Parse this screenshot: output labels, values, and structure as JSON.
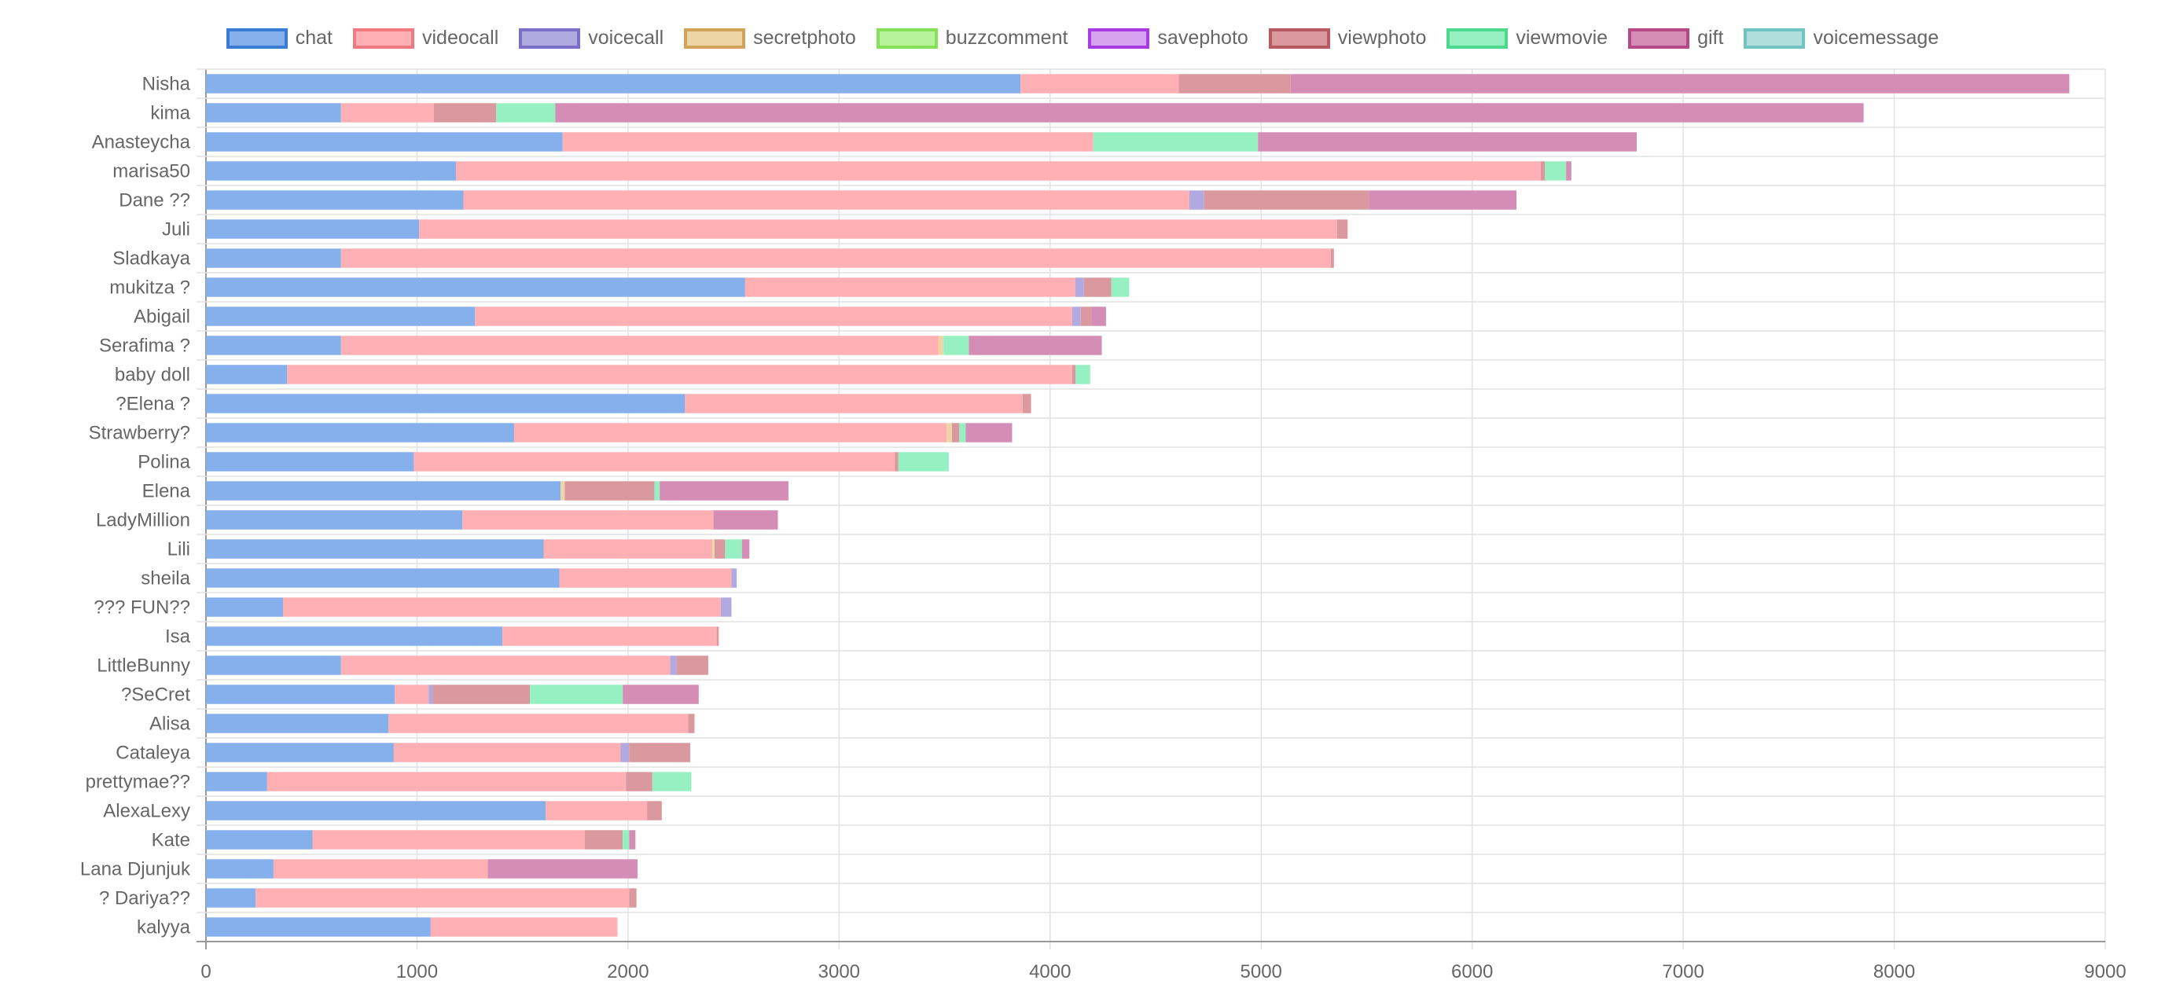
{
  "chart_data": {
    "type": "bar",
    "orientation": "horizontal",
    "stacked": true,
    "legend_position": "top",
    "grid": true,
    "xlim": [
      0,
      9000
    ],
    "x_ticks": [
      "0",
      "1000",
      "2000",
      "3000",
      "4000",
      "5000",
      "6000",
      "7000",
      "8000",
      "9000"
    ],
    "categories": [
      "Nisha",
      "kima",
      "Anasteycha",
      "marisa50",
      "Dane ??",
      "Juli",
      "Sladkaya",
      "mukitza ?",
      "Abigail",
      "Serafima ?",
      "baby doll",
      "?Elena ?",
      "Strawberry?",
      "Polina",
      "Elena",
      "LadyMillion",
      "Lili",
      "sheila",
      "??? FUN??",
      "Isa",
      "LittleBunny",
      "?SeCret",
      "Alisa",
      "Cataleya",
      "prettymae??",
      "AlexaLexy",
      "Kate",
      "Lana Djunjuk",
      "? Dariya??",
      "kalyya"
    ],
    "series": [
      {
        "name": "chat",
        "color": "#85b0ec",
        "border": "#3a7bd5",
        "values": [
          3860,
          640,
          1690,
          1185,
          1220,
          1010,
          640,
          2555,
          1275,
          640,
          385,
          2270,
          1460,
          985,
          1680,
          1215,
          1600,
          1675,
          365,
          1405,
          640,
          895,
          865,
          890,
          290,
          1610,
          505,
          320,
          235,
          1065
        ]
      },
      {
        "name": "videocall",
        "color": "#feb0b5",
        "border": "#f17a80",
        "values": [
          750,
          440,
          2515,
          5140,
          3440,
          4350,
          4690,
          1565,
          2830,
          2830,
          3720,
          1600,
          2050,
          2280,
          0,
          1190,
          800,
          815,
          2075,
          1015,
          1560,
          160,
          1420,
          1075,
          1700,
          480,
          1290,
          1015,
          1770,
          885
        ]
      },
      {
        "name": "voicecall",
        "color": "#b0aae0",
        "border": "#7b70c9",
        "values": [
          0,
          0,
          0,
          0,
          70,
          0,
          0,
          40,
          40,
          0,
          0,
          0,
          0,
          0,
          0,
          0,
          0,
          25,
          50,
          0,
          30,
          20,
          0,
          40,
          0,
          0,
          0,
          0,
          0,
          0
        ]
      },
      {
        "name": "secretphoto",
        "color": "#eed5a8",
        "border": "#d1a45a",
        "values": [
          0,
          0,
          0,
          0,
          0,
          0,
          0,
          0,
          0,
          25,
          0,
          0,
          25,
          0,
          20,
          0,
          10,
          0,
          0,
          0,
          0,
          0,
          0,
          0,
          0,
          0,
          0,
          0,
          0,
          0
        ]
      },
      {
        "name": "buzzcomment",
        "color": "#b7f39b",
        "border": "#86e05a",
        "values": [
          0,
          0,
          0,
          0,
          0,
          0,
          0,
          0,
          0,
          0,
          0,
          0,
          0,
          0,
          0,
          0,
          0,
          0,
          0,
          0,
          0,
          0,
          0,
          0,
          0,
          0,
          0,
          0,
          0,
          0
        ]
      },
      {
        "name": "savephoto",
        "color": "#d6a3f0",
        "border": "#a93be3",
        "values": [
          0,
          0,
          0,
          0,
          0,
          0,
          0,
          0,
          0,
          0,
          0,
          0,
          0,
          0,
          0,
          0,
          0,
          0,
          0,
          0,
          0,
          0,
          0,
          0,
          0,
          0,
          0,
          0,
          0,
          0
        ]
      },
      {
        "name": "viewphoto",
        "color": "#d9999e",
        "border": "#b85a61",
        "values": [
          530,
          295,
          0,
          20,
          780,
          50,
          15,
          130,
          50,
          0,
          15,
          40,
          35,
          15,
          425,
          0,
          50,
          0,
          0,
          10,
          150,
          460,
          30,
          290,
          125,
          70,
          180,
          0,
          35,
          0
        ]
      },
      {
        "name": "viewmovie",
        "color": "#96f0c2",
        "border": "#4cd98e",
        "values": [
          0,
          280,
          780,
          100,
          0,
          0,
          0,
          85,
          0,
          120,
          70,
          0,
          30,
          240,
          25,
          0,
          80,
          0,
          0,
          0,
          0,
          440,
          0,
          0,
          185,
          0,
          30,
          0,
          0,
          0
        ]
      },
      {
        "name": "gift",
        "color": "#d48eb6",
        "border": "#b64a86",
        "values": [
          3690,
          6200,
          1795,
          25,
          700,
          0,
          0,
          0,
          70,
          630,
          0,
          0,
          220,
          0,
          610,
          305,
          35,
          0,
          0,
          0,
          0,
          360,
          0,
          0,
          0,
          0,
          30,
          710,
          0,
          0
        ]
      },
      {
        "name": "voicemessage",
        "color": "#b0dedd",
        "border": "#72c4c2",
        "values": [
          0,
          0,
          0,
          0,
          0,
          0,
          0,
          0,
          0,
          0,
          0,
          0,
          0,
          0,
          0,
          0,
          0,
          0,
          0,
          0,
          0,
          0,
          0,
          0,
          0,
          0,
          0,
          0,
          0,
          0
        ]
      }
    ]
  }
}
